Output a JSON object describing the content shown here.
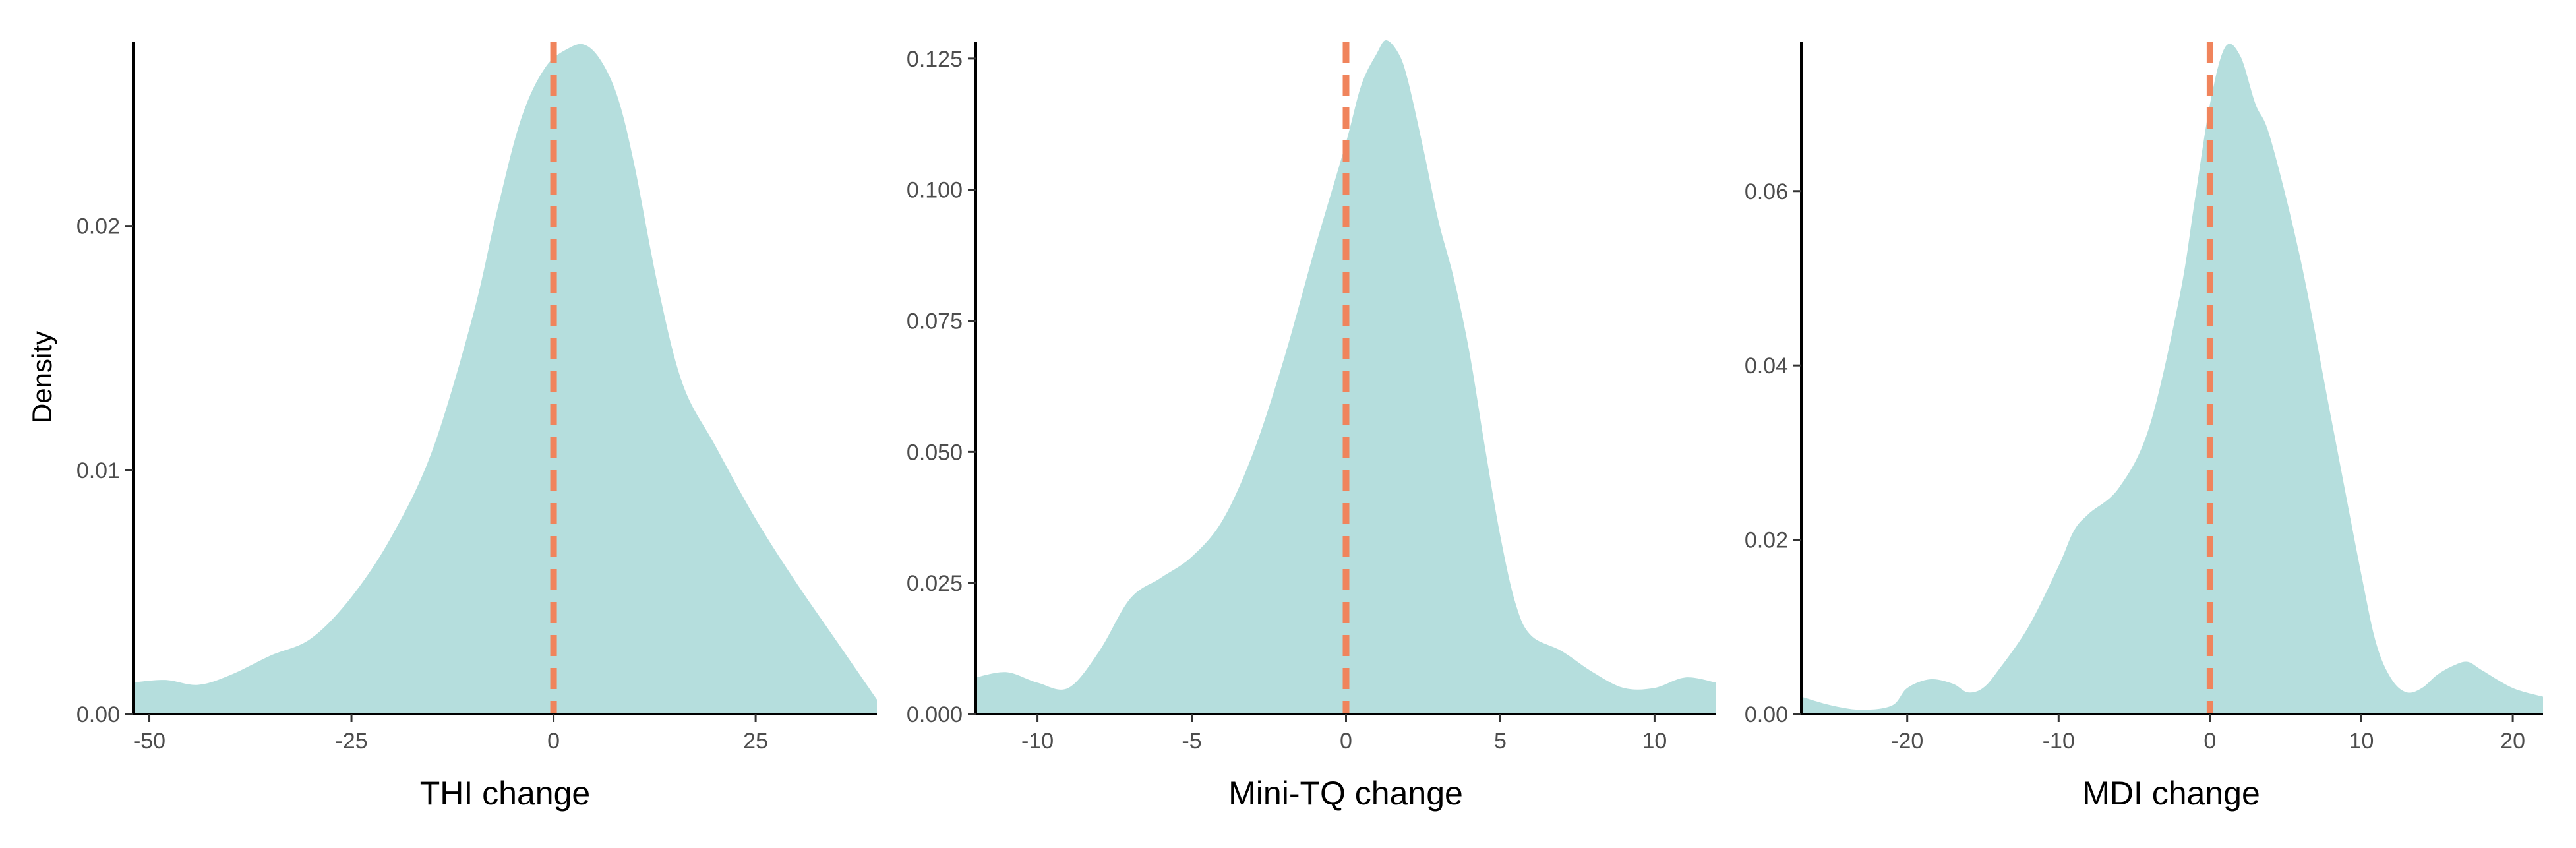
{
  "colors": {
    "fill": "#b5dedd",
    "ref_line": "#f0845c",
    "axis": "#000000",
    "tick_text": "#4d4d4d"
  },
  "shared": {
    "ylabel": "Density"
  },
  "chart_data": [
    {
      "type": "area",
      "xlabel": "THI change",
      "ylabel": "Density",
      "xlim": [
        -52,
        40
      ],
      "ylim": [
        0,
        0.0275
      ],
      "xticks": [
        -50,
        -25,
        0,
        25
      ],
      "xtick_labels": [
        "-50",
        "-25",
        "0",
        "25"
      ],
      "yticks": [
        0,
        0.01,
        0.02
      ],
      "ytick_labels": [
        "0.00",
        "0.01",
        "0.02"
      ],
      "ref_line_x": 0,
      "legend": "none",
      "grid": false,
      "x": [
        -52,
        -48,
        -44,
        -40,
        -35,
        -30,
        -25,
        -20,
        -15,
        -10,
        -7,
        -4,
        -1,
        2,
        4,
        6,
        8,
        10,
        13,
        16,
        20,
        25,
        30,
        35,
        40
      ],
      "y": [
        0.0013,
        0.0014,
        0.0012,
        0.0016,
        0.0024,
        0.0031,
        0.0048,
        0.0073,
        0.0108,
        0.0163,
        0.0206,
        0.0244,
        0.0265,
        0.0273,
        0.0274,
        0.0267,
        0.0252,
        0.0225,
        0.0174,
        0.0135,
        0.011,
        0.008,
        0.0054,
        0.003,
        0.0006
      ]
    },
    {
      "type": "area",
      "xlabel": "Mini-TQ change",
      "ylabel": "",
      "xlim": [
        -12,
        12
      ],
      "ylim": [
        0,
        0.128
      ],
      "xticks": [
        -10,
        -5,
        0,
        5,
        10
      ],
      "xtick_labels": [
        "-10",
        "-5",
        "0",
        "5",
        "10"
      ],
      "yticks": [
        0,
        0.025,
        0.05,
        0.075,
        0.1,
        0.125
      ],
      "ytick_labels": [
        "0.000",
        "0.025",
        "0.050",
        "0.075",
        "0.100",
        "0.125"
      ],
      "ref_line_x": 0,
      "legend": "none",
      "grid": false,
      "x": [
        -12,
        -11,
        -10,
        -9,
        -8,
        -7,
        -6,
        -5,
        -4,
        -3,
        -2,
        -1,
        0,
        0.5,
        1,
        1.3,
        1.7,
        2,
        2.5,
        3,
        3.5,
        4,
        4.5,
        5,
        5.5,
        6,
        7,
        8,
        9,
        10,
        11,
        12
      ],
      "y": [
        0.007,
        0.008,
        0.006,
        0.005,
        0.012,
        0.022,
        0.026,
        0.03,
        0.037,
        0.05,
        0.068,
        0.089,
        0.109,
        0.12,
        0.126,
        0.1285,
        0.126,
        0.121,
        0.108,
        0.094,
        0.083,
        0.069,
        0.051,
        0.034,
        0.021,
        0.015,
        0.012,
        0.008,
        0.005,
        0.005,
        0.007,
        0.006
      ]
    },
    {
      "type": "area",
      "xlabel": "MDI change",
      "ylabel": "",
      "xlim": [
        -27,
        22
      ],
      "ylim": [
        0,
        0.077
      ],
      "xticks": [
        -20,
        -10,
        0,
        10,
        20
      ],
      "xtick_labels": [
        "-20",
        "-10",
        "0",
        "10",
        "20"
      ],
      "yticks": [
        0,
        0.02,
        0.04,
        0.06
      ],
      "ytick_labels": [
        "0.00",
        "0.02",
        "0.04",
        "0.06"
      ],
      "ref_line_x": 0,
      "legend": "none",
      "grid": false,
      "x": [
        -27,
        -25,
        -23,
        -21,
        -20,
        -18.5,
        -17,
        -16,
        -15,
        -14,
        -12,
        -10,
        -9,
        -8,
        -6,
        -4,
        -2,
        -1,
        0,
        1,
        2,
        3,
        4,
        6,
        8,
        10,
        11,
        12,
        13,
        14,
        15,
        16,
        17,
        18,
        20,
        22
      ],
      "y": [
        0.002,
        0.001,
        0.0005,
        0.001,
        0.003,
        0.004,
        0.0035,
        0.0025,
        0.003,
        0.005,
        0.01,
        0.017,
        0.021,
        0.023,
        0.026,
        0.033,
        0.048,
        0.059,
        0.07,
        0.0765,
        0.0755,
        0.07,
        0.066,
        0.052,
        0.034,
        0.016,
        0.008,
        0.004,
        0.0025,
        0.003,
        0.0045,
        0.0055,
        0.006,
        0.005,
        0.003,
        0.002
      ]
    }
  ]
}
